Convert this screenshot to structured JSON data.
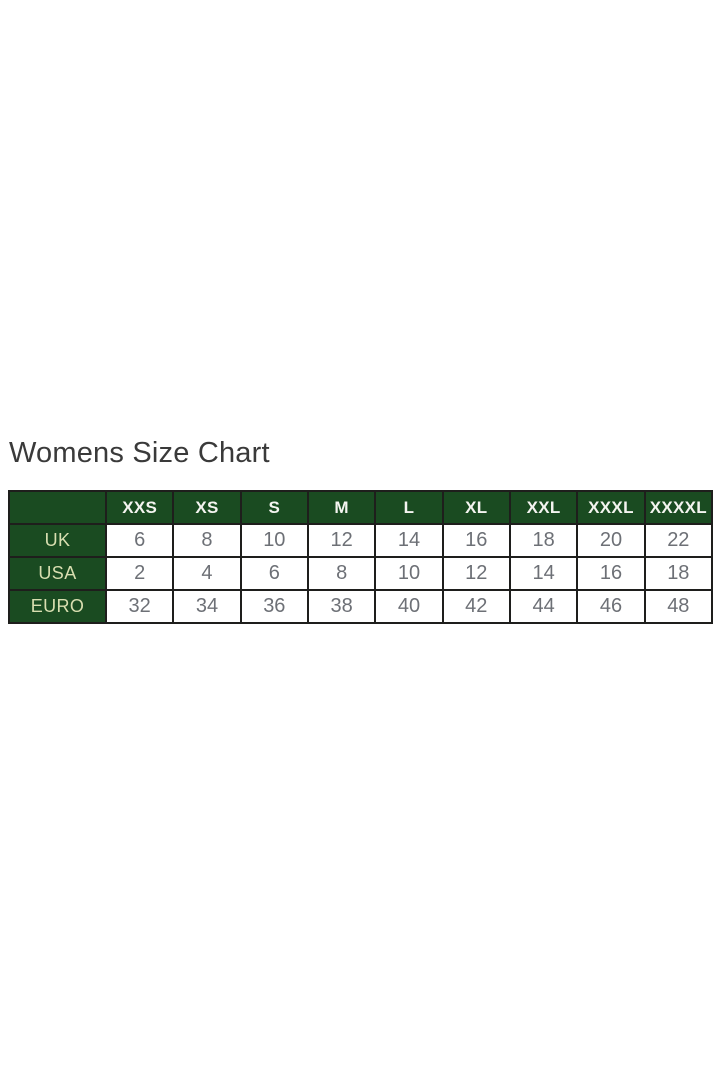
{
  "theme": {
    "header_bg": "#1A4B21",
    "header_text": "#F4F4F0",
    "row_label_text": "#D8DEB0",
    "cell_text": "#6D7076",
    "border": "#1E1E1C",
    "title_text": "#3A3A3A",
    "page_bg": "#FFFFFF"
  },
  "page": {
    "title": "Womens Size Chart"
  },
  "size_chart": {
    "corner_label": "",
    "columns": [
      "XXS",
      "XS",
      "S",
      "M",
      "L",
      "XL",
      "XXL",
      "XXXL",
      "XXXXL"
    ],
    "rows": [
      {
        "label": "UK",
        "values": [
          "6",
          "8",
          "10",
          "12",
          "14",
          "16",
          "18",
          "20",
          "22"
        ]
      },
      {
        "label": "USA",
        "values": [
          "2",
          "4",
          "6",
          "8",
          "10",
          "12",
          "14",
          "16",
          "18"
        ]
      },
      {
        "label": "EURO",
        "values": [
          "32",
          "34",
          "36",
          "38",
          "40",
          "42",
          "44",
          "46",
          "48"
        ]
      }
    ]
  }
}
